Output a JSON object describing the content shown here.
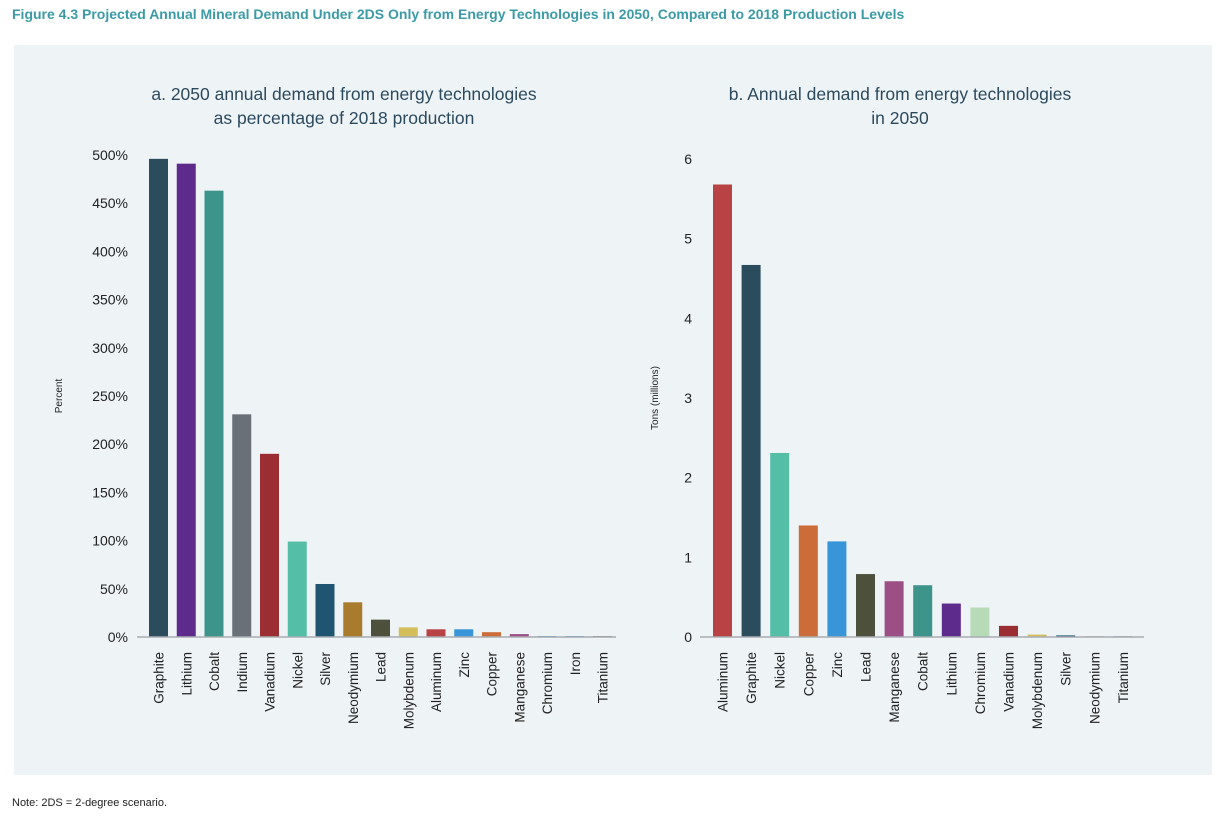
{
  "figure_title": "Figure 4.3 Projected Annual Mineral Demand Under 2DS Only from Energy Technologies in 2050, Compared to 2018 Production Levels",
  "note": "Note: 2DS = 2-degree scenario.",
  "chart_data": [
    {
      "type": "bar",
      "title": [
        "a. 2050 annual demand from energy technologies",
        "as percentage of 2018 production"
      ],
      "xlabel": "",
      "ylabel": "Percent",
      "ylim": [
        0,
        500
      ],
      "yticks": [
        0,
        50,
        100,
        150,
        200,
        250,
        300,
        350,
        400,
        450,
        500
      ],
      "ytick_labels": [
        "0%",
        "50%",
        "100%",
        "150%",
        "200%",
        "250%",
        "300%",
        "350%",
        "400%",
        "450%",
        "500%"
      ],
      "grid": false,
      "categories": [
        "Graphite",
        "Lithium",
        "Cobalt",
        "Indium",
        "Vanadium",
        "Nickel",
        "Silver",
        "Neodymium",
        "Lead",
        "Molybdenum",
        "Aluminum",
        "Zinc",
        "Copper",
        "Manganese",
        "Chromium",
        "Iron",
        "Titanium"
      ],
      "values": [
        496,
        491,
        463,
        231,
        190,
        99,
        55,
        36,
        18,
        10,
        8,
        8,
        5,
        3,
        1,
        1,
        1
      ],
      "colors": [
        "#2b4c5c",
        "#5c2b8c",
        "#3c948a",
        "#6a7078",
        "#9a2e33",
        "#54bea6",
        "#1f5570",
        "#a87c2c",
        "#4d503a",
        "#d4be5a",
        "#b94245",
        "#3896d8",
        "#cc6c38",
        "#9b4f84",
        "#3b8fd0",
        "#3a9ad0",
        "#8a7aa0"
      ]
    },
    {
      "type": "bar",
      "title": [
        "b. Annual demand from energy technologies",
        "in 2050"
      ],
      "xlabel": "",
      "ylabel": "Tons (millions)",
      "ylim": [
        0,
        6
      ],
      "yticks": [
        0,
        1,
        2,
        3,
        4,
        5,
        6
      ],
      "ytick_labels": [
        "0",
        "1",
        "2",
        "3",
        "4",
        "5",
        "6"
      ],
      "grid": false,
      "categories": [
        "Aluminum",
        "Graphite",
        "Nickel",
        "Copper",
        "Zinc",
        "Lead",
        "Manganese",
        "Cobalt",
        "Lithium",
        "Chromium",
        "Vanadium",
        "Molybdenum",
        "Silver",
        "Neodymium",
        "Titanium"
      ],
      "values": [
        5.68,
        4.67,
        2.31,
        1.4,
        1.2,
        0.79,
        0.7,
        0.65,
        0.42,
        0.37,
        0.14,
        0.03,
        0.02,
        0.01,
        0.01
      ],
      "colors": [
        "#b94245",
        "#2b4c5c",
        "#54bea6",
        "#cc6c38",
        "#3896d8",
        "#4d503a",
        "#9b4f84",
        "#3c948a",
        "#5c2b8c",
        "#b6dbb6",
        "#9a2e33",
        "#d4be5a",
        "#1f5570",
        "#c0a468",
        "#8a7aa0"
      ]
    }
  ]
}
